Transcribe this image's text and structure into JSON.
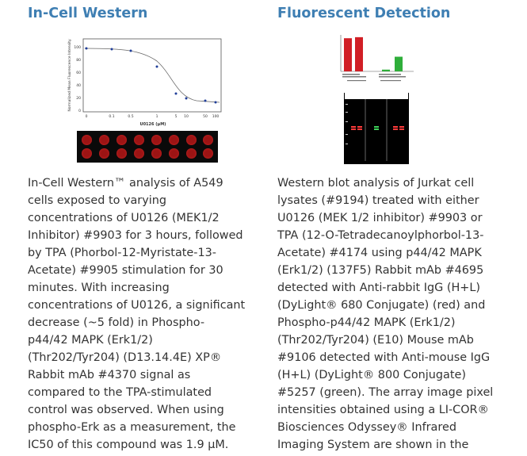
{
  "left": {
    "heading": "In-Cell Western",
    "figure": {
      "y_axis_label": "Normalized Mean Fluorescence Intensity",
      "x_axis_label": "U0126 (µM)",
      "y_ticks": [
        "100",
        "80",
        "60",
        "40",
        "20",
        "0"
      ],
      "x_ticks": [
        "0",
        "0.1",
        "0.5",
        "1",
        "5",
        "10",
        "50",
        "100"
      ],
      "well_color": "#9c1414"
    },
    "paragraph_lines": [
      "In-Cell Western™ analysis of A549",
      "cells exposed to varying",
      "concentrations of U0126 (MEK1/2",
      "Inhibitor) #9903 for 3 hours, followed",
      "by TPA (Phorbol-12-Myristate-13-",
      "Acetate) #9905 stimulation for 30",
      "minutes. With increasing",
      "concentrations of U0126, a significant",
      "decrease (~5 fold) in Phospho-",
      "p44/42 MAPK (Erk1/2)",
      "(Thr202/Tyr204) (D13.14.4E) XP®",
      "Rabbit mAb #4370 signal as",
      "compared to the TPA-stimulated",
      "control was observed. When using",
      "phospho-Erk as a measurement, the",
      "IC50 of this compound was 1.9 µM."
    ]
  },
  "right": {
    "heading": "Fluorescent Detection",
    "figure": {
      "bar_colors": [
        "#d11f26",
        "#d11f26",
        "#2fae3a",
        "#2fae3a"
      ],
      "bar_levels": [
        0.95,
        0.98,
        0.05,
        0.42
      ]
    },
    "paragraph_lines": [
      "Western blot analysis of Jurkat cell",
      "lysates (#9194) treated with either",
      "U0126 (MEK 1/2 inhibitor) #9903 or",
      "TPA (12-O-Tetradecanoylphorbol-13-",
      "Acetate) #4174 using p44/42 MAPK",
      "(Erk1/2) (137F5) Rabbit mAb #4695",
      "detected with Anti-rabbit IgG (H+L)",
      "(DyLight® 680 Conjugate) (red) and",
      "Phospho-p44/42 MAPK (Erk1/2)",
      "(Thr202/Tyr204) (E10) Mouse mAb",
      "#9106 detected with Anti-mouse IgG",
      "(H+L) (DyLight® 800 Conjugate)",
      "#5257 (green). The array image pixel",
      "intensities obtained using a LI-COR®",
      "Biosciences Odyssey® Infrared",
      "Imaging System are shown in the"
    ]
  },
  "colors": {
    "heading": "#3f7fb3",
    "body_text": "#333333"
  }
}
